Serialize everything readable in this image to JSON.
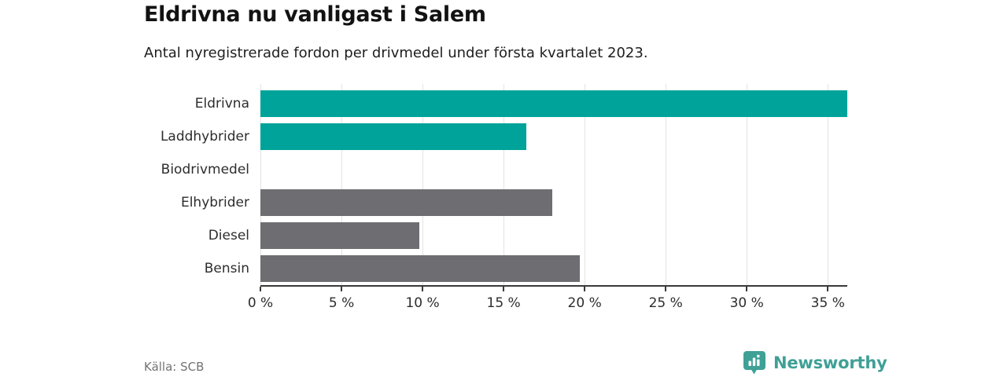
{
  "header": {
    "title": "Eldrivna nu vanligast i Salem",
    "subtitle": "Antal nyregistrerade fordon per drivmedel under första kvartalet 2023."
  },
  "footer": {
    "source": "Källa: SCB",
    "brand": "Newsworthy"
  },
  "colors": {
    "electric_teal": "#00a39a",
    "other_gray": "#6e6e72",
    "gridline": "#e3e3e3",
    "axis": "#3a3a3a",
    "brand_teal": "#3fa096",
    "background": "#ffffff"
  },
  "chart_data": {
    "type": "bar",
    "orientation": "horizontal",
    "title": "Eldrivna nu vanligast i Salem",
    "subtitle": "Antal nyregistrerade fordon per drivmedel under första kvartalet 2023.",
    "categories": [
      "Eldrivna",
      "Laddhybrider",
      "Biodrivmedel",
      "Elhybrider",
      "Diesel",
      "Bensin"
    ],
    "values": [
      36.2,
      16.4,
      0,
      18.0,
      9.8,
      19.7
    ],
    "unit": "%",
    "bar_colors": [
      "#00a39a",
      "#00a39a",
      "#6e6e72",
      "#6e6e72",
      "#6e6e72",
      "#6e6e72"
    ],
    "xlabel": "",
    "ylabel": "",
    "xlim": [
      0,
      36.2
    ],
    "xticks": [
      0,
      5,
      10,
      15,
      20,
      25,
      30,
      35
    ],
    "xtick_labels": [
      "0 %",
      "5 %",
      "10 %",
      "15 %",
      "20 %",
      "25 %",
      "30 %",
      "35 %"
    ],
    "grid": "vertical",
    "legend": "none"
  }
}
